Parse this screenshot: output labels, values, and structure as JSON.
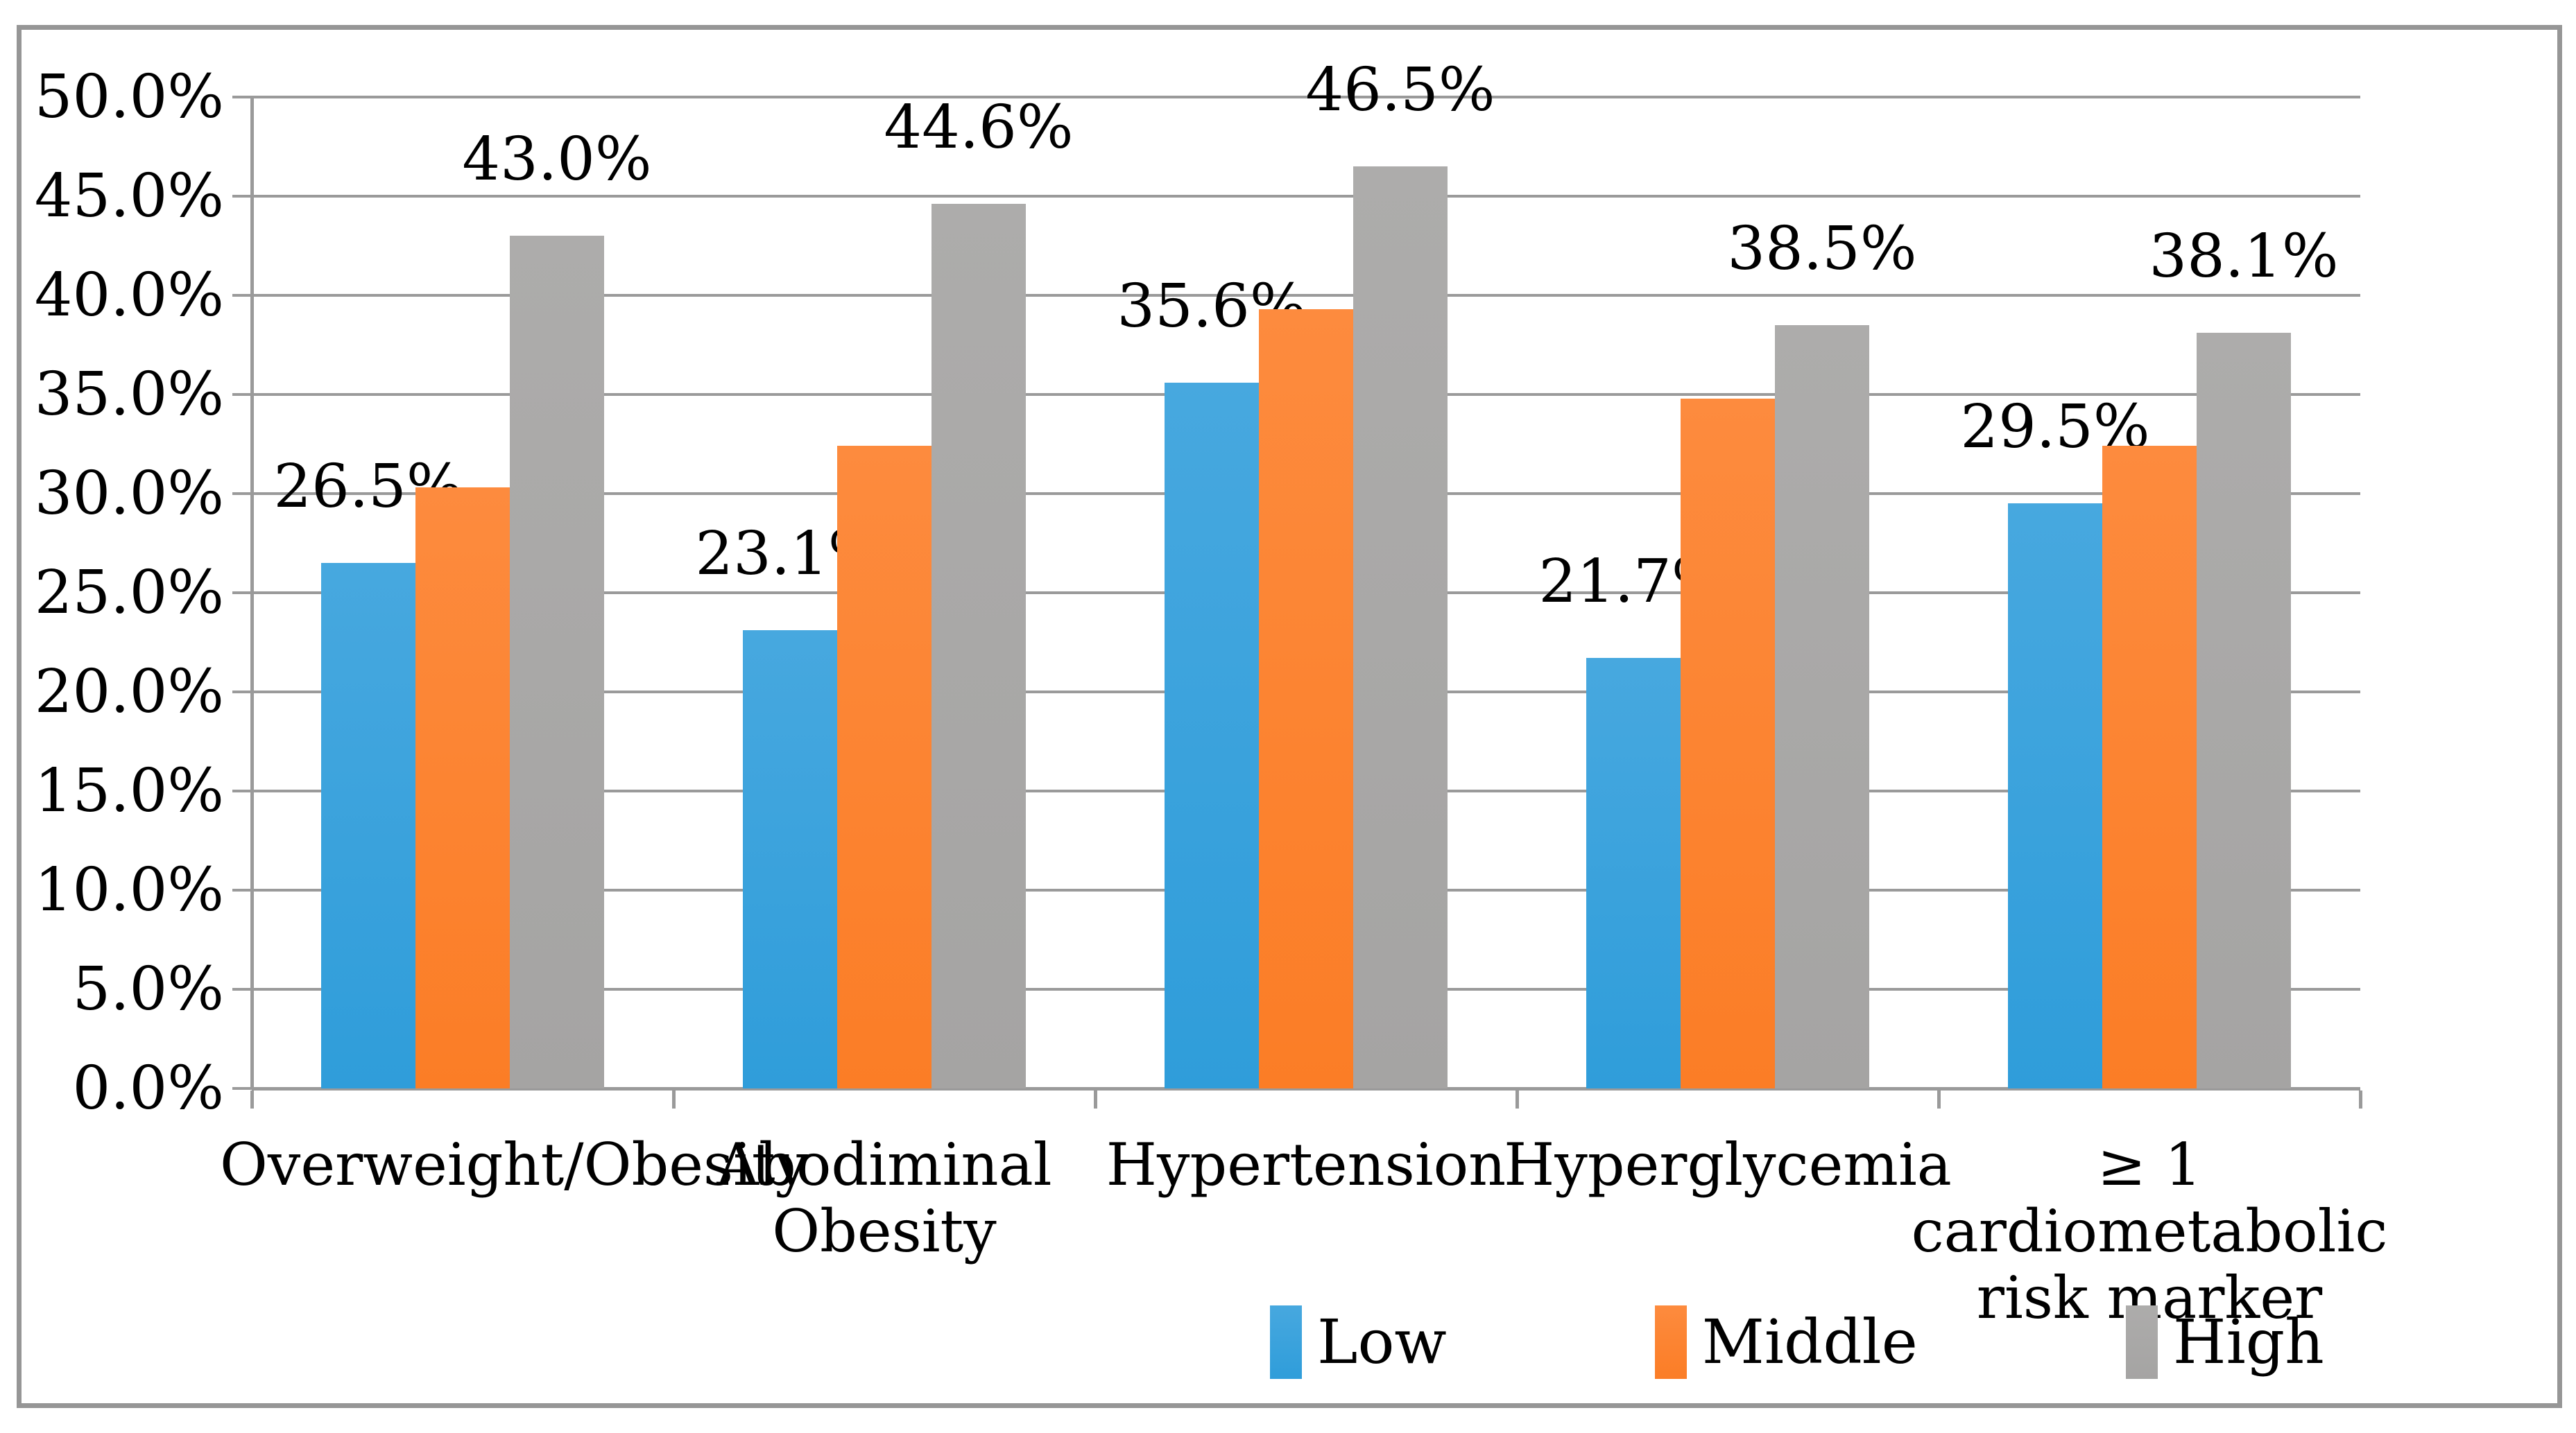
{
  "chart_data": {
    "type": "bar",
    "title": "",
    "categories": [
      "Overweight/Obesity",
      "Abodiminal Obesity",
      "Hypertension",
      "Hyperglycemia",
      "≥ 1 cardiometabolic risk marker"
    ],
    "series": [
      {
        "name": "Low",
        "values": [
          26.5,
          23.1,
          35.6,
          21.7,
          29.5
        ],
        "labels": [
          "26.5%",
          "23.1%",
          "35.6%",
          "21.7%",
          "29.5%"
        ],
        "fill": {
          "top": "#47a8df",
          "bottom": "#2f9dda"
        }
      },
      {
        "name": "Middle",
        "values": [
          30.3,
          32.4,
          39.3,
          34.8,
          32.4
        ],
        "labels": [
          null,
          null,
          null,
          null,
          null
        ],
        "fill": {
          "top": "#fd8b3e",
          "bottom": "#fb7d26"
        }
      },
      {
        "name": "High",
        "values": [
          43.0,
          44.6,
          46.5,
          38.5,
          38.1
        ],
        "labels": [
          "43.0%",
          "44.6%",
          "46.5%",
          "38.5%",
          "38.1%"
        ],
        "fill": {
          "top": "#adacab",
          "bottom": "#a5a4a3"
        }
      }
    ],
    "ylim": [
      0,
      50
    ],
    "ytick_step": 5,
    "ytick_labels": [
      "0.0%",
      "5.0%",
      "10.0%",
      "15.0%",
      "20.0%",
      "25.0%",
      "30.0%",
      "35.0%",
      "40.0%",
      "45.0%",
      "50.0%"
    ],
    "grid": true,
    "legend_position": "bottom",
    "legend_entries": [
      "Low",
      "Middle",
      "High"
    ]
  },
  "style_colors": {
    "grid": "#9a9a9a",
    "axis": "#9a9a9a",
    "figure_border": "#969696",
    "text": "#000000"
  }
}
